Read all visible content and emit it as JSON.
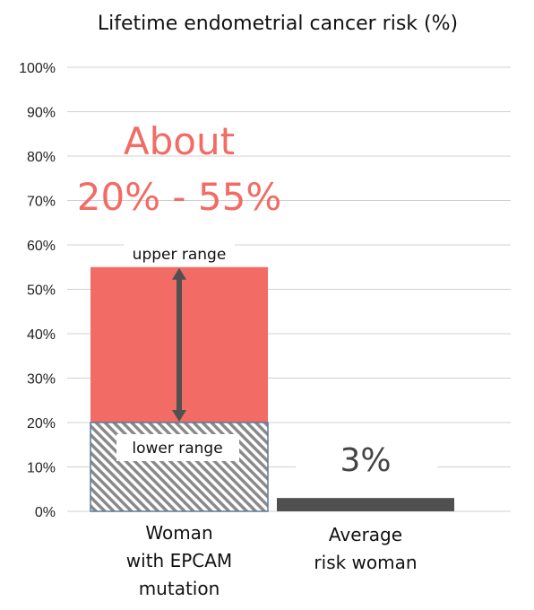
{
  "chart_data": {
    "type": "bar",
    "title": "Lifetime endometrial cancer risk (%)",
    "xlabel": "",
    "ylabel": "",
    "ylim": [
      0,
      100
    ],
    "y_ticks": [
      "0%",
      "10%",
      "20%",
      "30%",
      "40%",
      "50%",
      "60%",
      "70%",
      "80%",
      "90%",
      "100%"
    ],
    "grid": true,
    "categories": [
      [
        "Woman",
        "with EPCAM",
        "mutation"
      ],
      [
        "Average",
        "risk woman"
      ]
    ],
    "bars": [
      {
        "category_index": 0,
        "lower": 20,
        "upper": 55
      },
      {
        "category_index": 1,
        "value": 3
      }
    ],
    "annotations": {
      "range_text": [
        "About",
        "20% - 55%"
      ],
      "upper_label": "upper range",
      "lower_label": "lower range",
      "avg_label": "3%"
    },
    "colors": {
      "range": "#f26b64",
      "average": "#505050",
      "arrow": "#505050",
      "grid": "#d0d0d0"
    }
  }
}
